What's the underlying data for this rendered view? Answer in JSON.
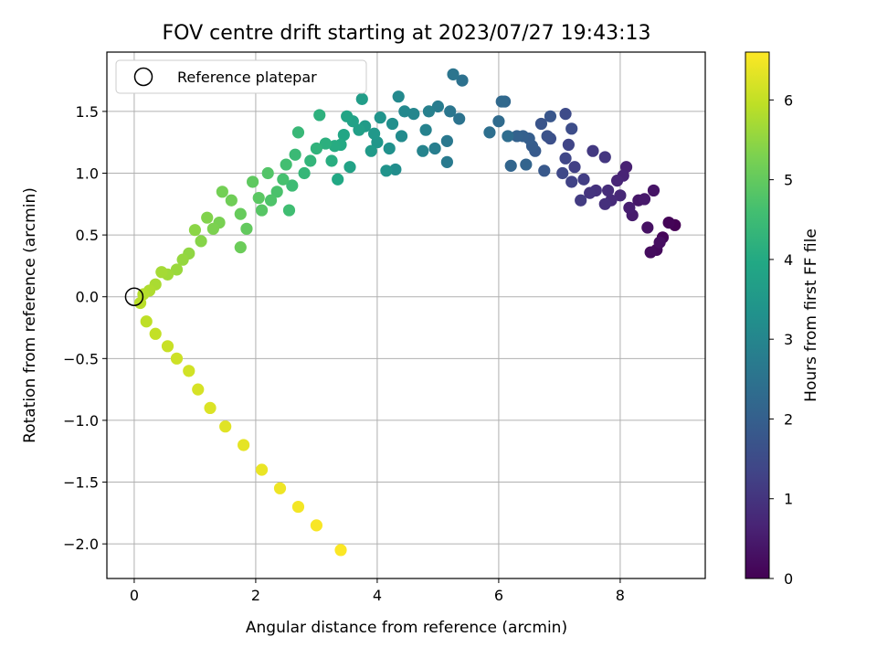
{
  "chart_data": {
    "type": "scatter",
    "title": "FOV centre drift starting at 2023/07/27 19:43:13",
    "xlabel": "Angular distance from reference (arcmin)",
    "ylabel": "Rotation from reference (arcmin)",
    "xlim": [
      -0.45,
      9.4
    ],
    "ylim": [
      -2.28,
      1.98
    ],
    "xticks": [
      0,
      2,
      4,
      6,
      8
    ],
    "yticks": [
      -2.0,
      -1.5,
      -1.0,
      -0.5,
      0.0,
      0.5,
      1.0,
      1.5
    ],
    "ytick_labels": [
      "−2.0",
      "−1.5",
      "−1.0",
      "−0.5",
      "0.0",
      "0.5",
      "1.0",
      "1.5"
    ],
    "grid": true,
    "legend": {
      "entries": [
        "Reference platepar"
      ],
      "position": "upper-left"
    },
    "reference_point": {
      "name": "Reference platepar",
      "x": 0.0,
      "y": 0.0
    },
    "colorbar": {
      "label": "Hours from first FF file",
      "range": [
        0,
        6.6
      ],
      "ticks": [
        0,
        1,
        2,
        3,
        4,
        5,
        6
      ],
      "colormap": "viridis"
    },
    "series": [
      {
        "name": "",
        "points": [
          [
            8.9,
            0.58,
            0.0
          ],
          [
            8.8,
            0.6,
            0.05
          ],
          [
            8.7,
            0.48,
            0.1
          ],
          [
            8.6,
            0.38,
            0.15
          ],
          [
            8.5,
            0.36,
            0.2
          ],
          [
            8.65,
            0.44,
            0.25
          ],
          [
            8.45,
            0.56,
            0.3
          ],
          [
            8.55,
            0.86,
            0.35
          ],
          [
            8.3,
            0.78,
            0.4
          ],
          [
            8.4,
            0.79,
            0.45
          ],
          [
            8.2,
            0.66,
            0.5
          ],
          [
            8.15,
            0.72,
            0.55
          ],
          [
            8.1,
            1.05,
            0.6
          ],
          [
            8.05,
            0.98,
            0.65
          ],
          [
            7.95,
            0.94,
            0.7
          ],
          [
            8.0,
            0.82,
            0.75
          ],
          [
            7.85,
            0.78,
            0.8
          ],
          [
            7.8,
            0.86,
            0.85
          ],
          [
            7.75,
            0.75,
            0.9
          ],
          [
            7.6,
            0.86,
            0.95
          ],
          [
            7.5,
            0.84,
            1.0
          ],
          [
            7.75,
            1.13,
            1.05
          ],
          [
            7.55,
            1.18,
            1.1
          ],
          [
            7.35,
            0.78,
            1.15
          ],
          [
            7.4,
            0.95,
            1.2
          ],
          [
            7.25,
            1.05,
            1.25
          ],
          [
            7.2,
            0.93,
            1.3
          ],
          [
            7.15,
            1.23,
            1.35
          ],
          [
            7.1,
            1.12,
            1.4
          ],
          [
            7.05,
            1.0,
            1.45
          ],
          [
            7.1,
            1.48,
            1.5
          ],
          [
            7.2,
            1.36,
            1.55
          ],
          [
            6.85,
            1.28,
            1.6
          ],
          [
            6.8,
            1.3,
            1.65
          ],
          [
            6.7,
            1.4,
            1.7
          ],
          [
            6.85,
            1.46,
            1.75
          ],
          [
            6.75,
            1.02,
            1.8
          ],
          [
            6.6,
            1.18,
            1.85
          ],
          [
            6.55,
            1.22,
            1.9
          ],
          [
            6.5,
            1.28,
            1.95
          ],
          [
            6.4,
            1.3,
            2.0
          ],
          [
            6.3,
            1.3,
            2.05
          ],
          [
            6.45,
            1.07,
            2.1
          ],
          [
            6.2,
            1.06,
            2.15
          ],
          [
            6.1,
            1.58,
            2.2
          ],
          [
            6.05,
            1.58,
            2.25
          ],
          [
            6.0,
            1.42,
            2.3
          ],
          [
            6.15,
            1.3,
            2.35
          ],
          [
            5.85,
            1.33,
            2.4
          ],
          [
            5.4,
            1.75,
            2.45
          ],
          [
            5.35,
            1.44,
            2.5
          ],
          [
            5.25,
            1.8,
            2.55
          ],
          [
            5.2,
            1.5,
            2.6
          ],
          [
            5.15,
            1.26,
            2.65
          ],
          [
            5.15,
            1.09,
            2.7
          ],
          [
            5.0,
            1.54,
            2.75
          ],
          [
            4.95,
            1.2,
            2.8
          ],
          [
            4.85,
            1.5,
            2.85
          ],
          [
            4.8,
            1.35,
            2.9
          ],
          [
            4.75,
            1.18,
            2.95
          ],
          [
            4.6,
            1.48,
            3.0
          ],
          [
            4.45,
            1.5,
            3.05
          ],
          [
            4.35,
            1.62,
            3.1
          ],
          [
            4.4,
            1.3,
            3.15
          ],
          [
            4.3,
            1.03,
            3.2
          ],
          [
            4.25,
            1.4,
            3.25
          ],
          [
            4.2,
            1.2,
            3.3
          ],
          [
            4.15,
            1.02,
            3.35
          ],
          [
            4.05,
            1.45,
            3.4
          ],
          [
            4.0,
            1.25,
            3.45
          ],
          [
            3.95,
            1.32,
            3.5
          ],
          [
            3.9,
            1.18,
            3.55
          ],
          [
            3.8,
            1.38,
            3.6
          ],
          [
            3.75,
            1.6,
            3.65
          ],
          [
            3.7,
            1.35,
            3.7
          ],
          [
            3.6,
            1.42,
            3.75
          ],
          [
            3.55,
            1.05,
            3.8
          ],
          [
            3.5,
            1.46,
            3.85
          ],
          [
            3.45,
            1.31,
            3.9
          ],
          [
            3.35,
            0.95,
            3.95
          ],
          [
            3.4,
            1.23,
            4.0
          ],
          [
            3.3,
            1.22,
            4.05
          ],
          [
            3.25,
            1.1,
            4.1
          ],
          [
            3.15,
            1.24,
            4.15
          ],
          [
            3.05,
            1.47,
            4.2
          ],
          [
            3.0,
            1.2,
            4.25
          ],
          [
            2.9,
            1.1,
            4.3
          ],
          [
            2.8,
            1.0,
            4.35
          ],
          [
            2.7,
            1.33,
            4.4
          ],
          [
            2.65,
            1.15,
            4.45
          ],
          [
            2.6,
            0.9,
            4.5
          ],
          [
            2.55,
            0.7,
            4.55
          ],
          [
            2.5,
            1.07,
            4.6
          ],
          [
            2.45,
            0.95,
            4.65
          ],
          [
            2.35,
            0.85,
            4.7
          ],
          [
            2.25,
            0.78,
            4.75
          ],
          [
            2.2,
            1.0,
            4.8
          ],
          [
            2.1,
            0.7,
            4.85
          ],
          [
            2.05,
            0.8,
            4.9
          ],
          [
            1.95,
            0.93,
            4.95
          ],
          [
            1.85,
            0.55,
            5.0
          ],
          [
            1.75,
            0.67,
            5.05
          ],
          [
            1.75,
            0.4,
            5.1
          ],
          [
            1.6,
            0.78,
            5.15
          ],
          [
            1.45,
            0.85,
            5.2
          ],
          [
            1.4,
            0.6,
            5.25
          ],
          [
            1.3,
            0.55,
            5.3
          ],
          [
            1.2,
            0.64,
            5.35
          ],
          [
            1.1,
            0.45,
            5.4
          ],
          [
            1.0,
            0.54,
            5.45
          ],
          [
            0.9,
            0.35,
            5.5
          ],
          [
            0.8,
            0.3,
            5.55
          ],
          [
            0.7,
            0.22,
            5.6
          ],
          [
            0.55,
            0.18,
            5.65
          ],
          [
            0.45,
            0.2,
            5.7
          ],
          [
            0.35,
            0.1,
            5.75
          ],
          [
            0.25,
            0.05,
            5.8
          ],
          [
            0.15,
            0.02,
            5.85
          ],
          [
            0.1,
            -0.05,
            5.9
          ],
          [
            0.2,
            -0.2,
            5.95
          ],
          [
            0.35,
            -0.3,
            6.0
          ],
          [
            0.55,
            -0.4,
            6.05
          ],
          [
            0.7,
            -0.5,
            6.1
          ],
          [
            0.9,
            -0.6,
            6.15
          ],
          [
            1.05,
            -0.75,
            6.2
          ],
          [
            1.25,
            -0.9,
            6.25
          ],
          [
            1.5,
            -1.05,
            6.3
          ],
          [
            1.8,
            -1.2,
            6.35
          ],
          [
            2.1,
            -1.4,
            6.4
          ],
          [
            2.4,
            -1.55,
            6.45
          ],
          [
            2.7,
            -1.7,
            6.5
          ],
          [
            3.0,
            -1.85,
            6.55
          ],
          [
            3.4,
            -2.05,
            6.58
          ]
        ]
      }
    ]
  }
}
